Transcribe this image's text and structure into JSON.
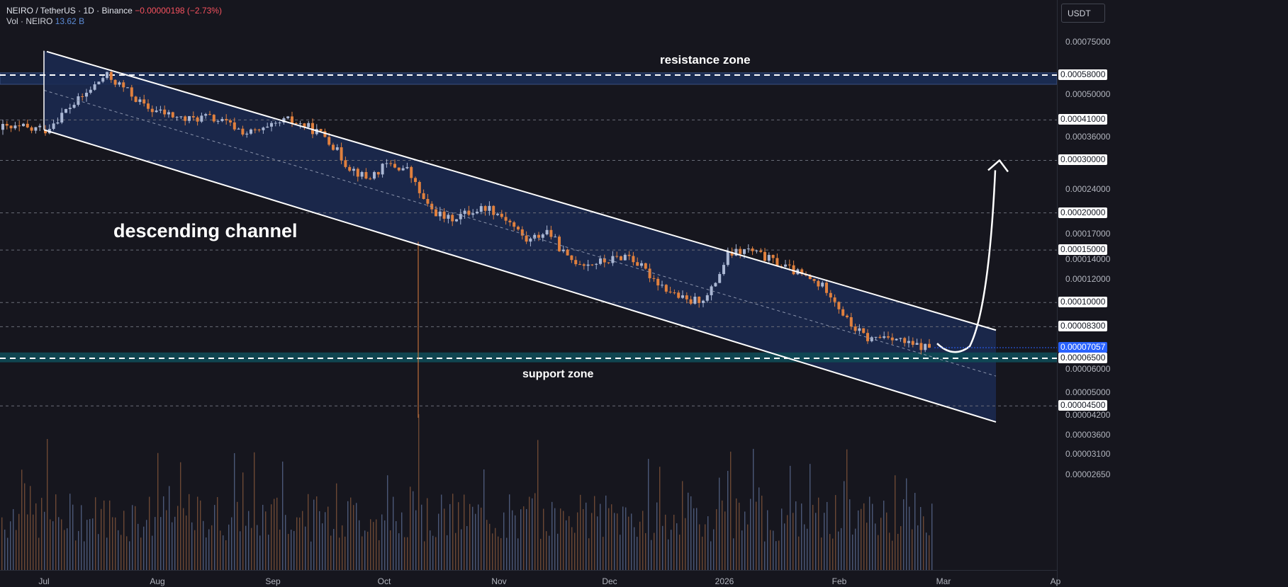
{
  "header": {
    "symbol": "NEIRO / TetherUS · 1D · Binance",
    "change": "−0.00000198 (−2.73%)",
    "vol_label": "Vol · NEIRO",
    "vol_value": "13.62 B"
  },
  "currency": "USDT",
  "annotations": {
    "resistance": "resistance zone",
    "support": "support zone",
    "channel": "descending channel"
  },
  "colors": {
    "background": "#16161e",
    "up": "#aab7d4",
    "down": "#e0803e",
    "channel_fill": "#1b2a52",
    "support_zone": "#0f4a55",
    "resistance_zone": "#1b2e55",
    "current_price": "#2962ff"
  },
  "chart_data": {
    "type": "candlestick",
    "symbol": "NEIRO / TetherUS",
    "timeframe": "1D",
    "exchange": "Binance",
    "x_labels": [
      "Jul",
      "Aug",
      "Sep",
      "Oct",
      "Nov",
      "Dec",
      "2026",
      "Feb",
      "Mar",
      "Ap"
    ],
    "y_scale": "log",
    "y_ticks": [
      "0.00075000",
      "0.00050000",
      "0.00036000",
      "0.00024000",
      "0.00017000",
      "0.00014000",
      "0.00012000",
      "0.00006000",
      "0.00005000",
      "0.00004200",
      "0.00003600",
      "0.00003100",
      "0.00002650"
    ],
    "price_levels": [
      "0.00058000",
      "0.00041000",
      "0.00030000",
      "0.00020000",
      "0.00015000",
      "0.00010000",
      "0.00008300",
      "0.00006500",
      "0.00004500"
    ],
    "current_price": "0.00007057",
    "resistance_zone": [
      0.00054,
      0.00059
    ],
    "support_zone": [
      6.3e-05,
      6.8e-05
    ],
    "channel": {
      "upper": [
        [
          "Jul",
          0.0007
        ],
        [
          "Mar",
          9.1e-05
        ]
      ],
      "lower": [
        [
          "Jul",
          0.00038
        ],
        [
          "Mar",
          4.5e-05
        ]
      ]
    },
    "projection_target": 0.0003,
    "close_series": [
      0.00038,
      0.00044,
      0.0005,
      0.00058,
      0.00052,
      0.00045,
      0.00043,
      0.00041,
      0.00042,
      0.0004,
      0.00037,
      0.00038,
      0.00041,
      0.00039,
      0.00036,
      0.00029,
      0.00026,
      0.00029,
      0.00028,
      0.00021,
      0.00019,
      0.0002,
      0.00021,
      0.00019,
      0.00016,
      0.000175,
      0.00014,
      0.000135,
      0.000138,
      0.000145,
      0.000125,
      0.00011,
      0.0001,
      0.000105,
      0.000145,
      0.00015,
      0.00014,
      0.00013,
      0.00012,
      0.00011,
      8.5e-05,
      7.5e-05,
      7.8e-05,
      7.2e-05,
      7.057e-05
    ]
  }
}
